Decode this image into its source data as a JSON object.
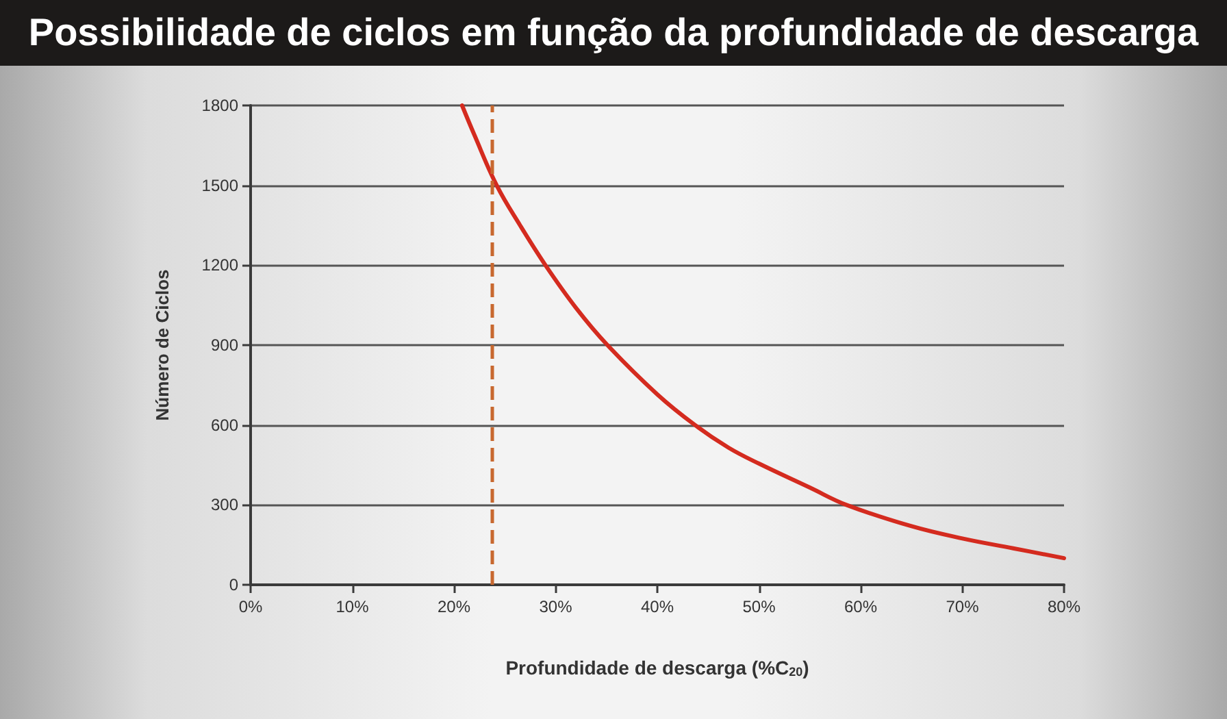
{
  "chart_data": {
    "type": "line",
    "title": "Possibilidade de ciclos em função da profundidade de descarga",
    "xlabel": "Profundidade de descarga (%C$_{20}$)",
    "ylabel": "Número de Ciclos",
    "x": [
      20.8,
      22,
      24.2,
      26.5,
      29,
      32,
      35.1,
      40,
      43.7,
      47,
      50,
      55,
      58.6,
      65,
      70,
      75,
      80
    ],
    "values": [
      1800,
      1690,
      1500,
      1350,
      1200,
      1040,
      900,
      715,
      600,
      515,
      455,
      365,
      300,
      220,
      174,
      137,
      100
    ],
    "color": "#d42b1f",
    "marker": "none",
    "line_style": "solid",
    "xlim": [
      0,
      80
    ],
    "xticks": [
      {
        "value": 0,
        "label": "0%"
      },
      {
        "value": 10,
        "label": "10%"
      },
      {
        "value": 20,
        "label": "20%"
      },
      {
        "value": 30,
        "label": "30%"
      },
      {
        "value": 40,
        "label": "40%"
      },
      {
        "value": 50,
        "label": "50%"
      },
      {
        "value": 60,
        "label": "60%"
      },
      {
        "value": 70,
        "label": "70%"
      },
      {
        "value": 80,
        "label": "80%"
      }
    ],
    "ylim": [
      0,
      1800
    ],
    "yticks": [
      0,
      300,
      600,
      900,
      1200,
      1500,
      1800
    ],
    "grid": "y",
    "ref_lines": [
      {
        "axis": "x",
        "value": 23.7,
        "color": "#c8682f",
        "line_style": "dashed"
      }
    ]
  }
}
